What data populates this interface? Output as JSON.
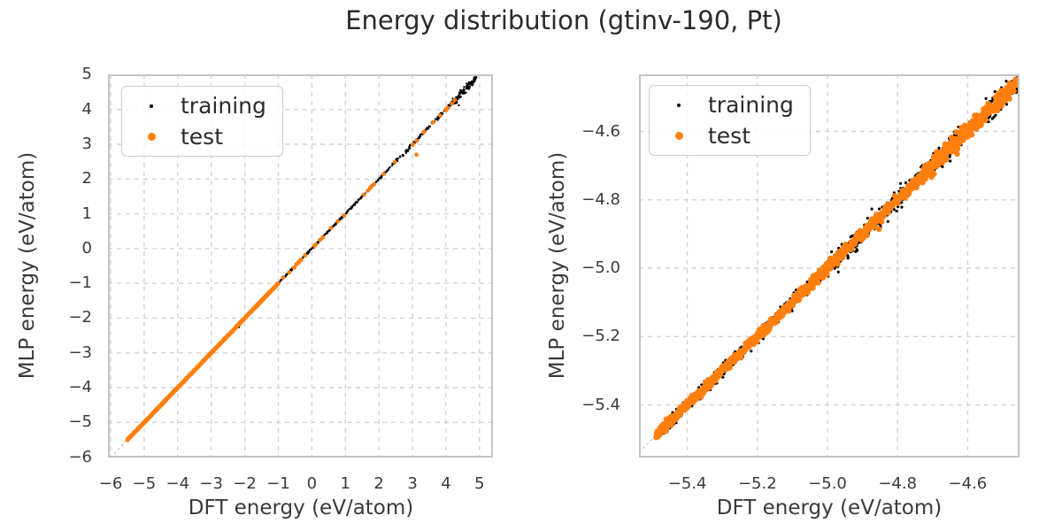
{
  "figure": {
    "title": "Energy distribution (gtinv-190, Pt)",
    "background": "#ffffff"
  },
  "colors": {
    "training": "#000000",
    "test": "#ff7f0e",
    "grid": "#d4d4d4",
    "spine": "#c4c4c4",
    "identity_line": "#b3b3b3",
    "text": "#3a3a3a",
    "title_text": "#2b2b2b"
  },
  "chart_data": [
    {
      "type": "scatter",
      "panel": "left",
      "xlabel": "DFT energy (eV/atom)",
      "ylabel": "MLP energy (eV/atom)",
      "xlim": [
        -6.08,
        5.4
      ],
      "ylim": [
        -6.01,
        5.01
      ],
      "grid": true,
      "grid_style": "dashed",
      "identity_line": true,
      "xticks": [
        {
          "value": -6,
          "label": "−6"
        },
        {
          "value": -5,
          "label": "−5"
        },
        {
          "value": -4,
          "label": "−4"
        },
        {
          "value": -3,
          "label": "−3"
        },
        {
          "value": -2,
          "label": "−2"
        },
        {
          "value": -1,
          "label": "−1"
        },
        {
          "value": 0,
          "label": "0"
        },
        {
          "value": 1,
          "label": "1"
        },
        {
          "value": 2,
          "label": "2"
        },
        {
          "value": 3,
          "label": "3"
        },
        {
          "value": 4,
          "label": "4"
        },
        {
          "value": 5,
          "label": "5"
        }
      ],
      "yticks": [
        {
          "value": 5,
          "label": "5"
        },
        {
          "value": 4,
          "label": "4"
        },
        {
          "value": 3,
          "label": "3"
        },
        {
          "value": 2,
          "label": "2"
        },
        {
          "value": 1,
          "label": "1"
        },
        {
          "value": 0,
          "label": "0"
        },
        {
          "value": -1,
          "label": "−1"
        },
        {
          "value": -2,
          "label": "−2"
        },
        {
          "value": -3,
          "label": "−3"
        },
        {
          "value": -4,
          "label": "−4"
        },
        {
          "value": -5,
          "label": "−5"
        },
        {
          "value": -6,
          "label": "−6"
        }
      ],
      "legend": {
        "position": "upper left",
        "entries": [
          {
            "label": "training",
            "color": "#000000"
          },
          {
            "label": "test",
            "color": "#ff7f0e"
          }
        ]
      },
      "series": [
        {
          "name": "training",
          "color": "#000000",
          "marker_radius_px": 1.2,
          "relation": "y = x + noise (identity, MLP vs DFT energy)",
          "segments": [
            {
              "x_range": [
                -5.5,
                -1.0
              ],
              "count": 420,
              "y_noise_std": 0.008
            },
            {
              "x_range": [
                -1.0,
                2.3
              ],
              "count": 300,
              "y_noise_std": 0.012
            },
            {
              "x_range": [
                2.3,
                4.2
              ],
              "count": 110,
              "y_noise_std": 0.028
            },
            {
              "x_range": [
                4.2,
                4.92
              ],
              "count": 100,
              "y_noise_std": 0.055
            }
          ],
          "outlier_points": [
            [
              -2.17,
              -2.26
            ],
            [
              4.38,
              4.12
            ]
          ]
        },
        {
          "name": "test",
          "color": "#ff7f0e",
          "marker_radius_px": 2.4,
          "relation": "y = x + noise (identity, MLP vs DFT energy)",
          "segments": [
            {
              "x_range": [
                -5.5,
                -1.0
              ],
              "count": 650,
              "y_noise_std": 0.006
            },
            {
              "x_range": [
                -1.0,
                4.55
              ],
              "count": 34,
              "y_noise_std": 0.01
            }
          ],
          "outlier_points": [
            [
              3.12,
              2.7
            ]
          ]
        }
      ]
    },
    {
      "type": "scatter",
      "panel": "right",
      "xlabel": "DFT energy (eV/atom)",
      "ylabel": "MLP energy (eV/atom)",
      "xlim": [
        -5.538,
        -4.452
      ],
      "ylim": [
        -5.554,
        -4.433
      ],
      "grid": true,
      "grid_style": "dashed",
      "identity_line": true,
      "xticks": [
        {
          "value": -5.4,
          "label": "−5.4"
        },
        {
          "value": -5.2,
          "label": "−5.2"
        },
        {
          "value": -5.0,
          "label": "−5.0"
        },
        {
          "value": -4.8,
          "label": "−4.8"
        },
        {
          "value": -4.6,
          "label": "−4.6"
        }
      ],
      "yticks": [
        {
          "value": -4.6,
          "label": "−4.6"
        },
        {
          "value": -4.8,
          "label": "−4.8"
        },
        {
          "value": -5.0,
          "label": "−5.0"
        },
        {
          "value": -5.2,
          "label": "−5.2"
        },
        {
          "value": -5.4,
          "label": "−5.4"
        }
      ],
      "legend": {
        "position": "upper left",
        "entries": [
          {
            "label": "training",
            "color": "#000000"
          },
          {
            "label": "test",
            "color": "#ff7f0e"
          }
        ]
      },
      "series": [
        {
          "name": "training",
          "color": "#000000",
          "marker_radius_px": 1.6,
          "relation": "y = x + noise (identity, MLP vs DFT energy)",
          "segments": [
            {
              "x_range": [
                -5.49,
                -5.0
              ],
              "count": 350,
              "y_noise_std": 0.01
            },
            {
              "x_range": [
                -5.0,
                -4.456
              ],
              "count": 520,
              "y_noise_std": 0.015
            }
          ],
          "outlier_points": [
            [
              -4.525,
              -4.558
            ]
          ]
        },
        {
          "name": "test",
          "color": "#ff7f0e",
          "marker_radius_px": 3.2,
          "relation": "y = x + noise (identity, MLP vs DFT energy)",
          "segments": [
            {
              "x_range": [
                -5.49,
                -5.1
              ],
              "count": 560,
              "y_noise_std": 0.006
            },
            {
              "x_range": [
                -5.1,
                -4.75
              ],
              "count": 260,
              "y_noise_std": 0.009
            },
            {
              "x_range": [
                -4.75,
                -4.456
              ],
              "count": 300,
              "y_noise_std": 0.011
            }
          ],
          "outlier_points": [
            [
              -4.63,
              -4.666
            ],
            [
              -4.853,
              -4.886
            ]
          ]
        }
      ]
    }
  ]
}
